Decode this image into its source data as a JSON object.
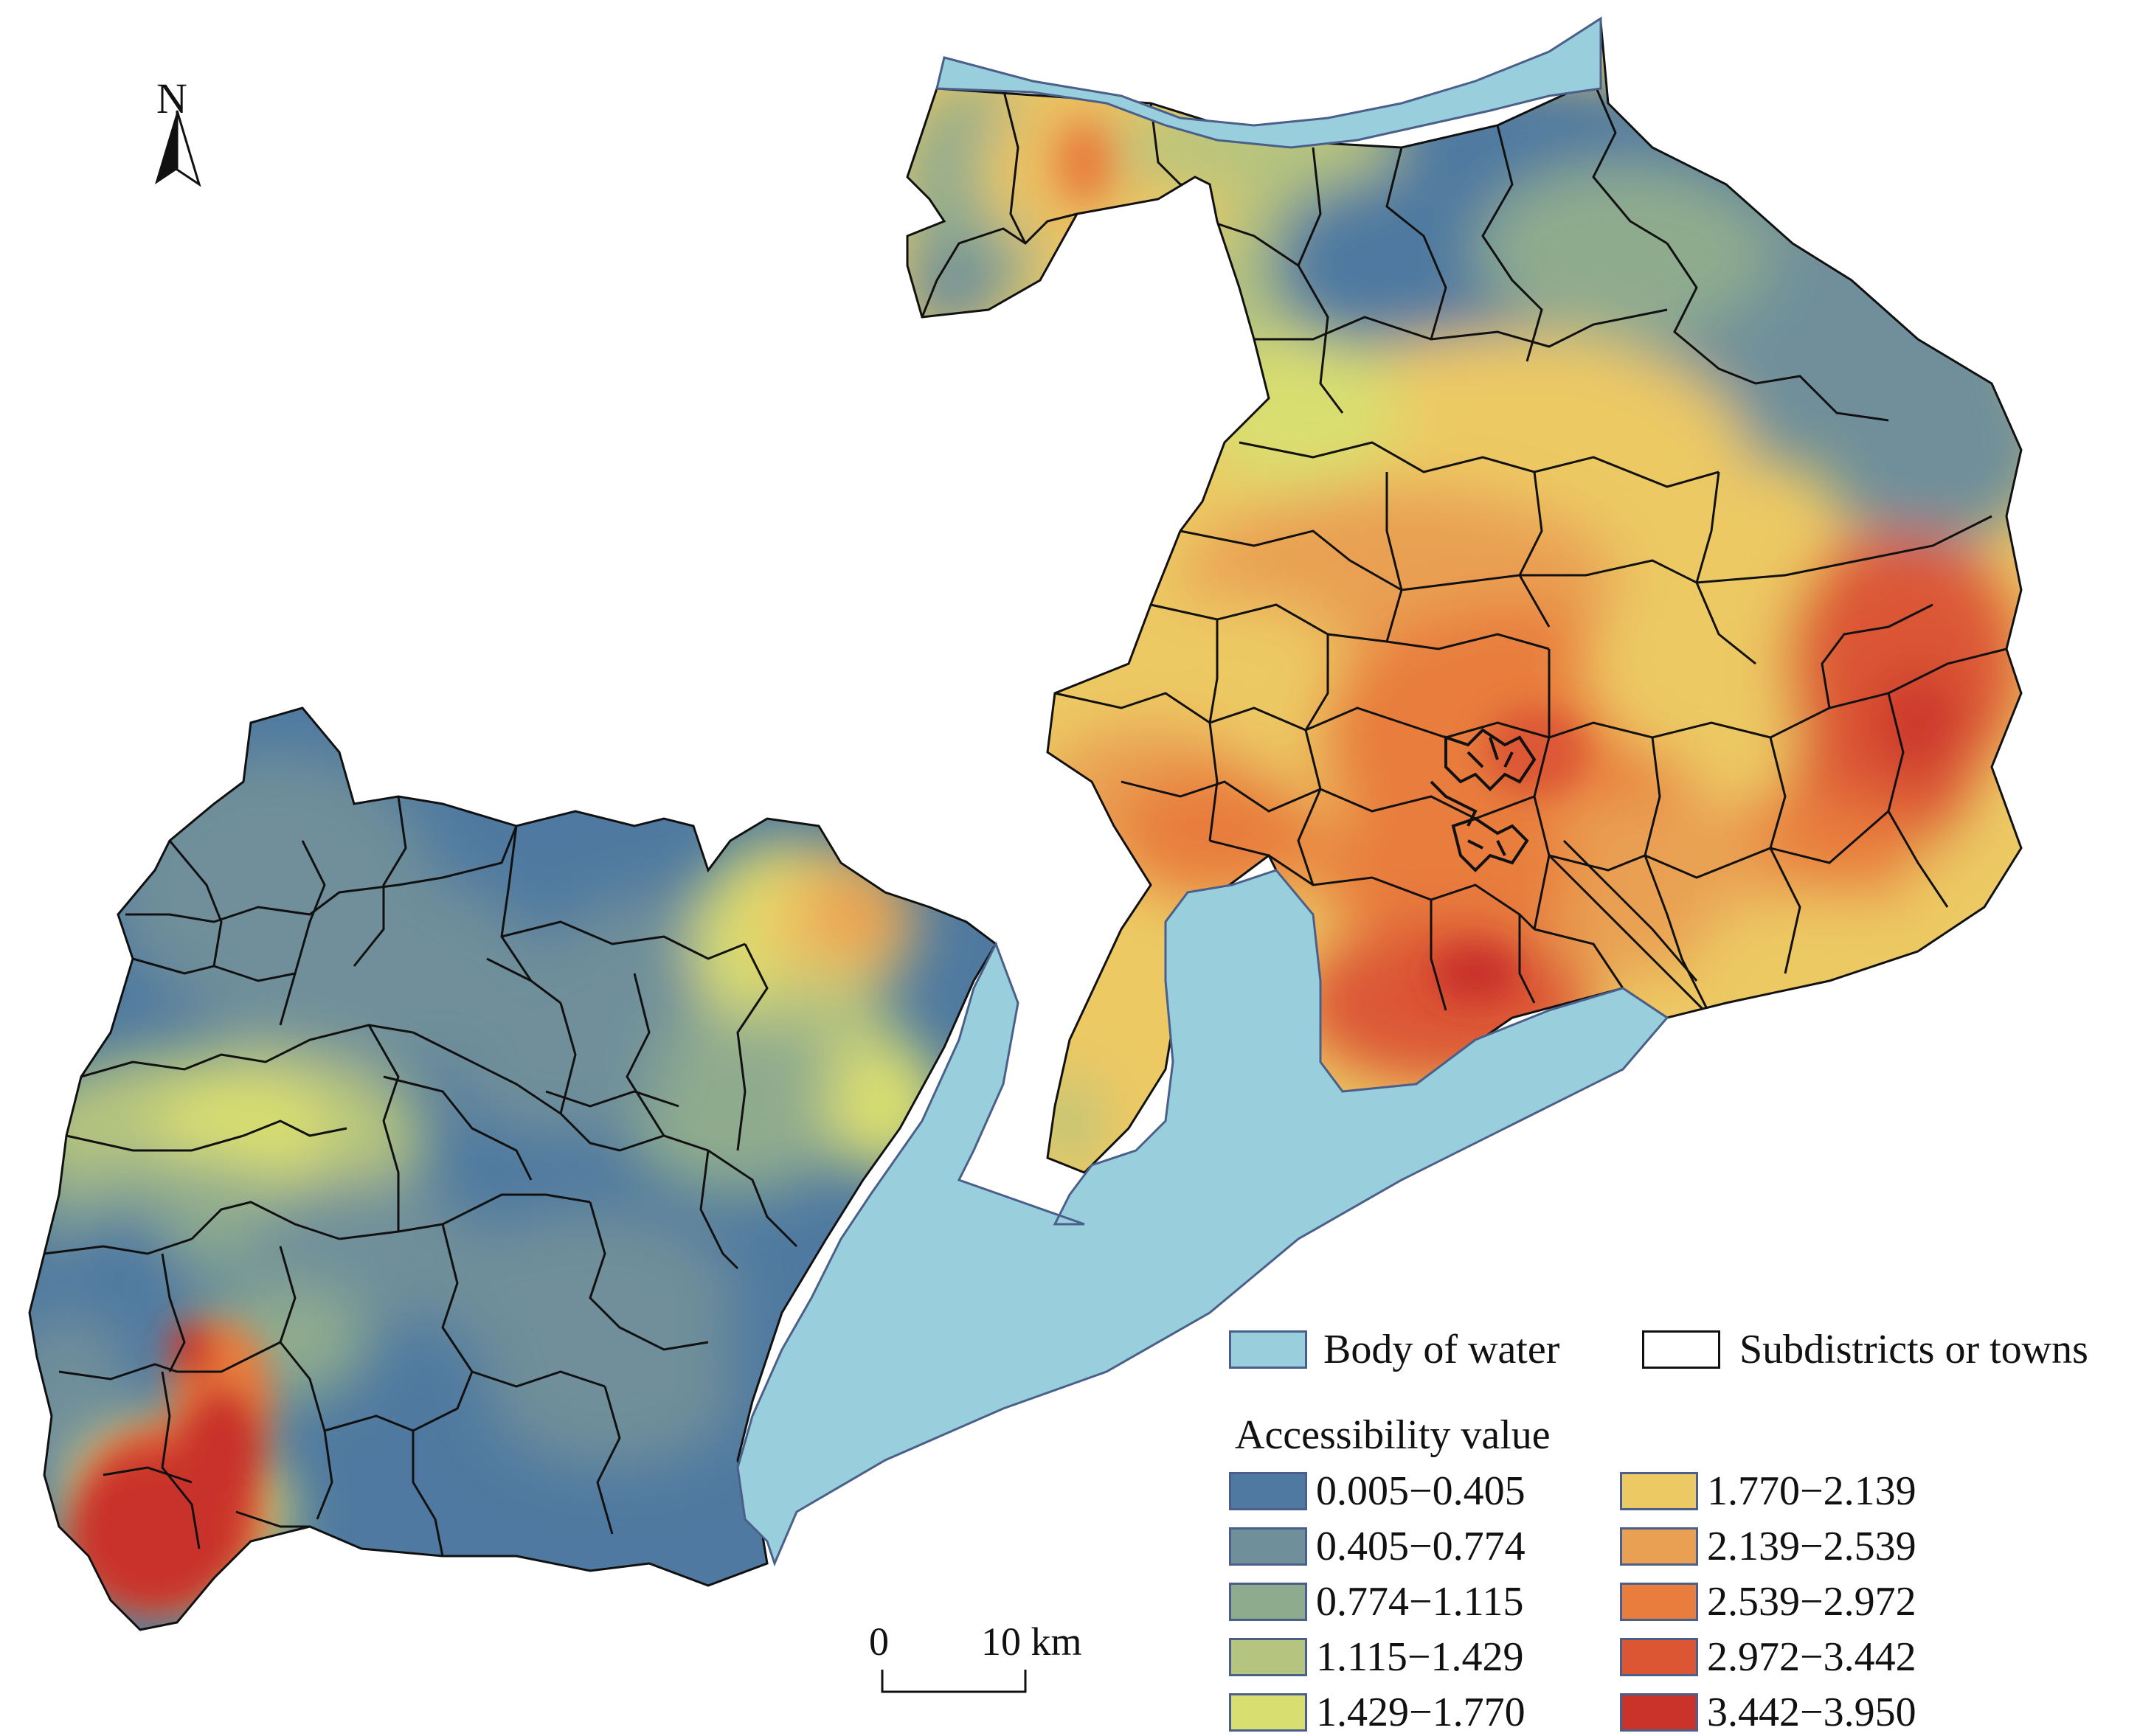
{
  "north_arrow": {
    "label": "N"
  },
  "scale_bar": {
    "start": "0",
    "end": "10 km"
  },
  "legend": {
    "water_label": "Body of water",
    "boundary_label": "Subdistricts or towns",
    "title": "Accessibility value",
    "classes": [
      {
        "range": "0.005−0.405",
        "color": "#4f79a0"
      },
      {
        "range": "0.405−0.774",
        "color": "#6f8f9a"
      },
      {
        "range": "0.774−1.115",
        "color": "#8fab8e"
      },
      {
        "range": "1.115−1.429",
        "color": "#b5c47e"
      },
      {
        "range": "1.429−1.770",
        "color": "#d9de70"
      },
      {
        "range": "1.770−2.139",
        "color": "#ecc963"
      },
      {
        "range": "2.139−2.539",
        "color": "#e9a052"
      },
      {
        "range": "2.539−2.972",
        "color": "#e87d3e"
      },
      {
        "range": "2.972−3.442",
        "color": "#dc5634"
      },
      {
        "range": "3.442−3.950",
        "color": "#c9332a"
      }
    ]
  },
  "colors": {
    "water": "#99cedc",
    "water_outline": "#4a5f8a",
    "boundary": "#111111"
  }
}
